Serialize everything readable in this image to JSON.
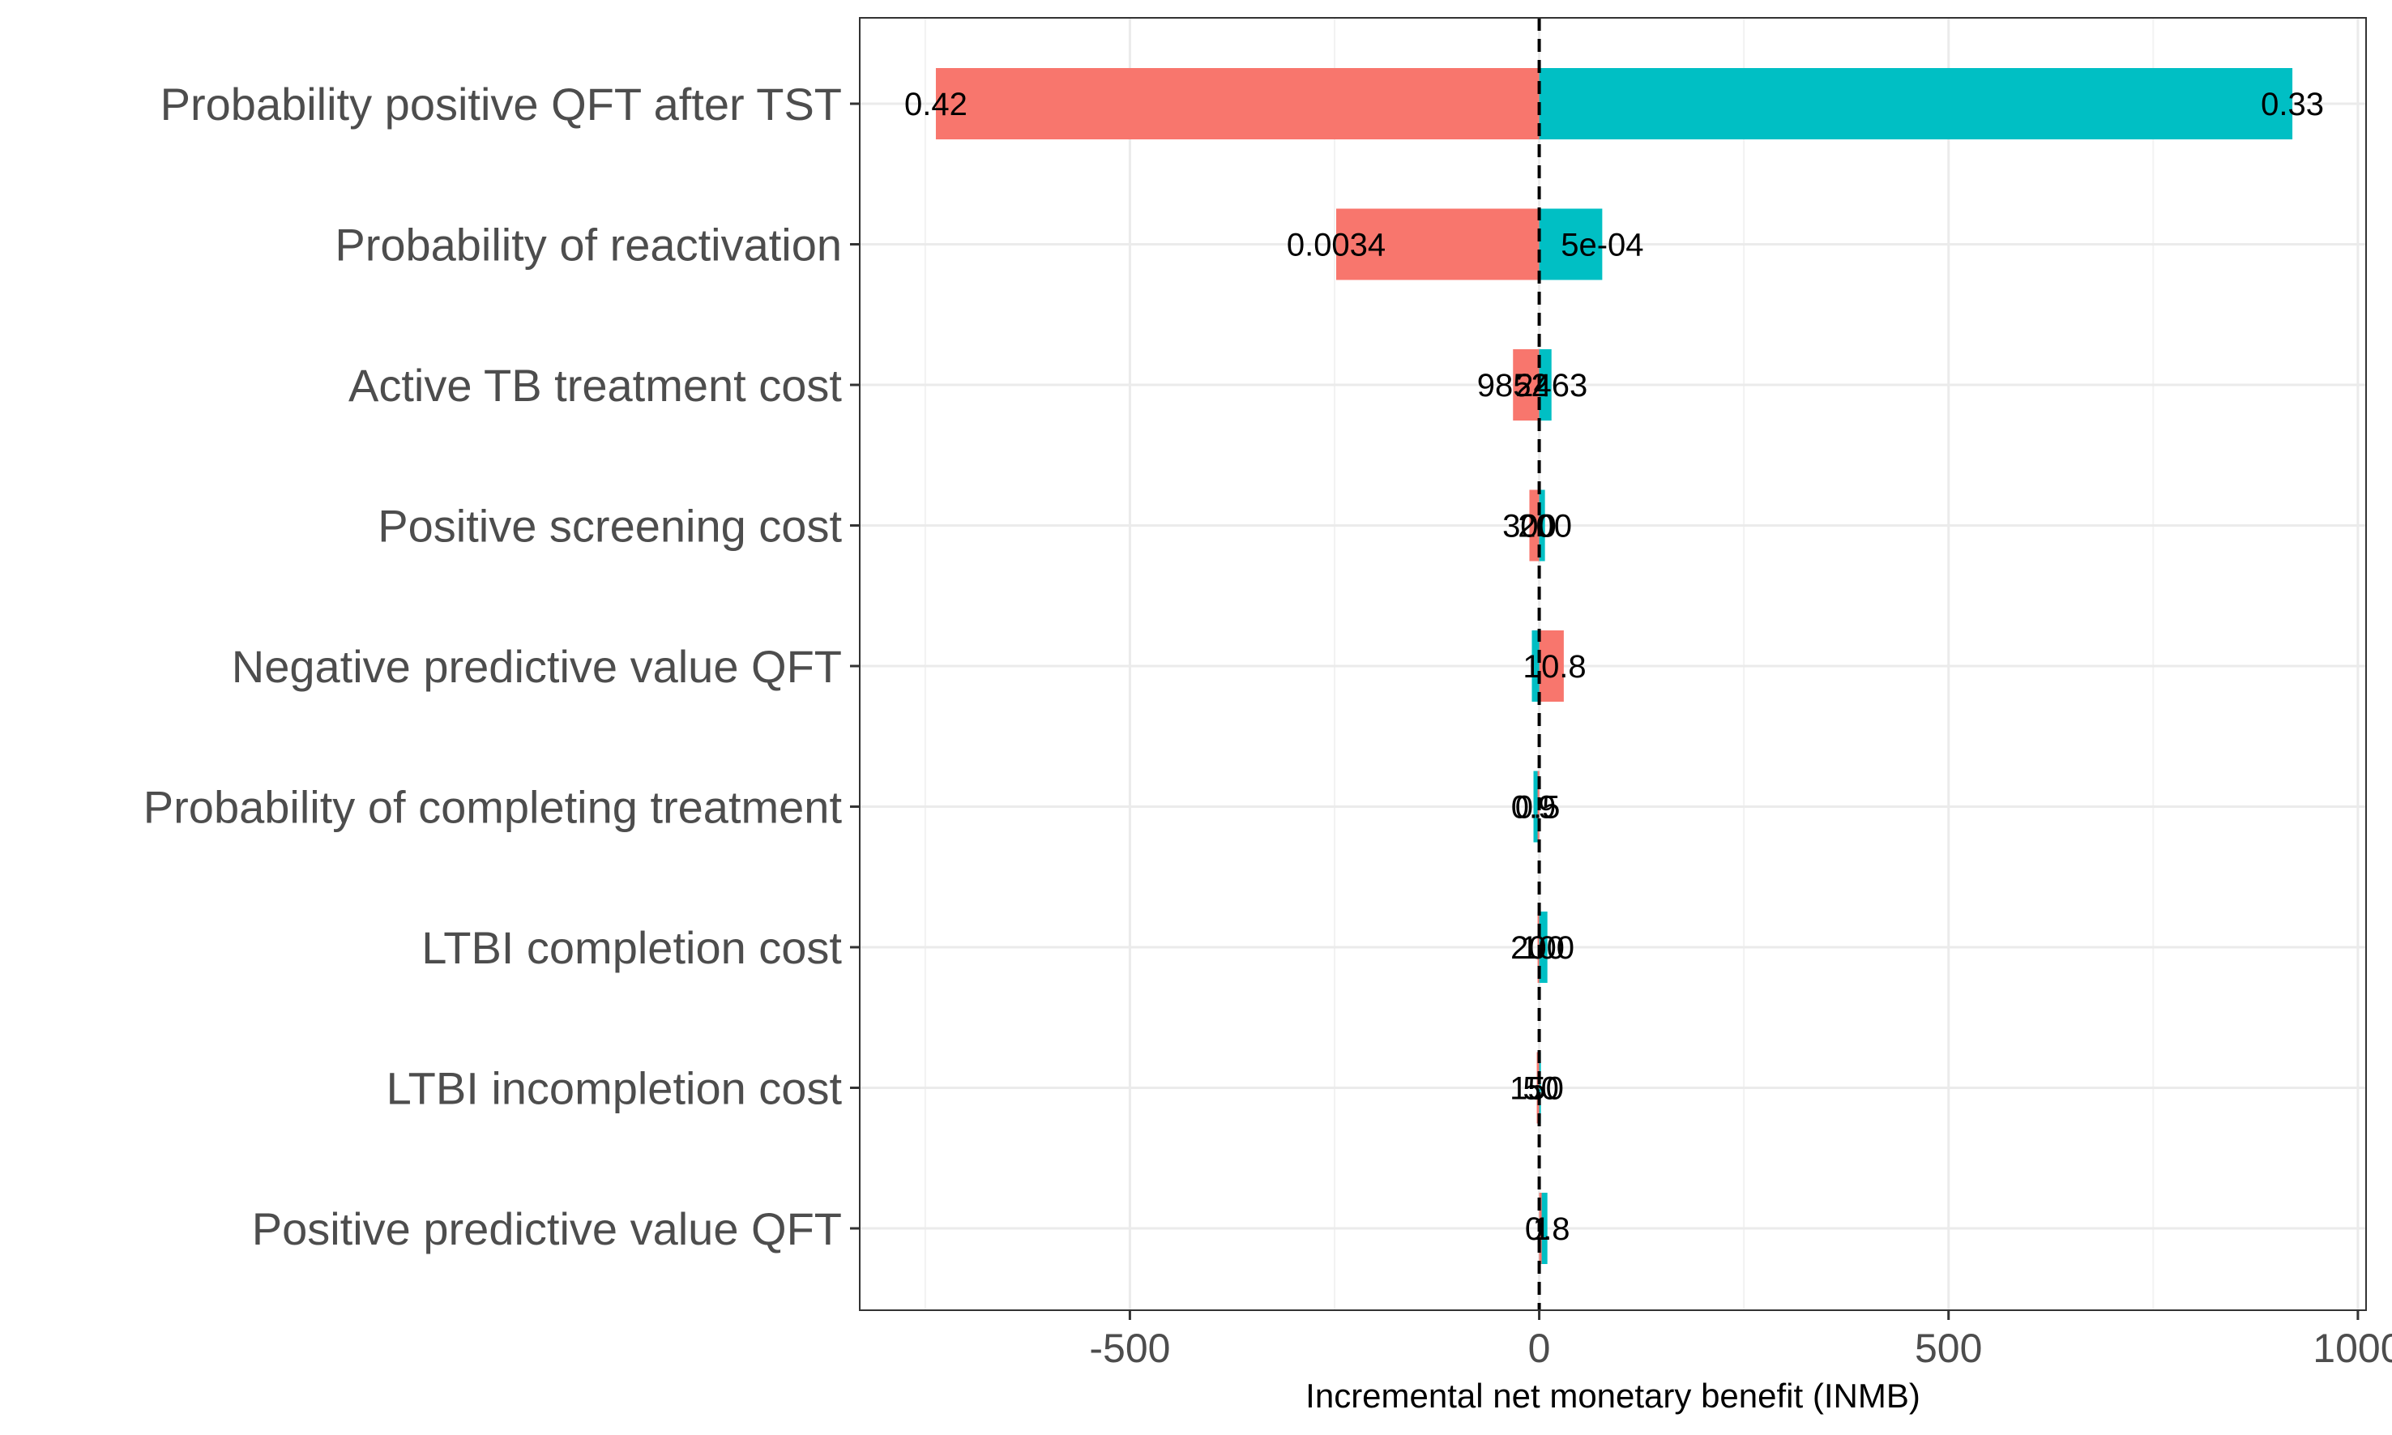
{
  "chart_data": {
    "type": "bar",
    "orientation": "horizontal",
    "style": "tornado",
    "xlabel": "Incremental net monetary benefit (INMB)",
    "xlim": [
      -830,
      1010
    ],
    "x_ticks": [
      -500,
      0,
      500,
      1000
    ],
    "x_tick_labels": [
      "-500",
      "0",
      "500",
      "1000"
    ],
    "grid": true,
    "reference_line": {
      "x": 0,
      "style": "dashed"
    },
    "colors": {
      "low": "#F8766D",
      "high": "#00BFC4"
    },
    "categories": [
      "Probability positive QFT after TST",
      "Probability of reactivation",
      "Active TB treatment cost",
      "Positive screening cost",
      "Negative predictive value QFT",
      "Probability of completing treatment",
      "LTBI completion cost",
      "LTBI incompletion cost",
      "Positive predictive value QFT"
    ],
    "series": [
      {
        "color_key": "low",
        "values": [
          -737,
          -248,
          -32,
          -12,
          30,
          -2,
          -2,
          -3,
          3
        ],
        "labels": [
          "0.42",
          "0.0034",
          "9852",
          "300",
          "0.8",
          "0.5",
          "200",
          "150",
          "1"
        ]
      },
      {
        "color_key": "high",
        "values": [
          920,
          77,
          15,
          7,
          -9,
          -7,
          10,
          2,
          10
        ],
        "labels": [
          "0.33",
          "5e-04",
          "2463",
          "200",
          "1",
          "0.9",
          "100",
          "50",
          "0.8"
        ]
      }
    ]
  }
}
